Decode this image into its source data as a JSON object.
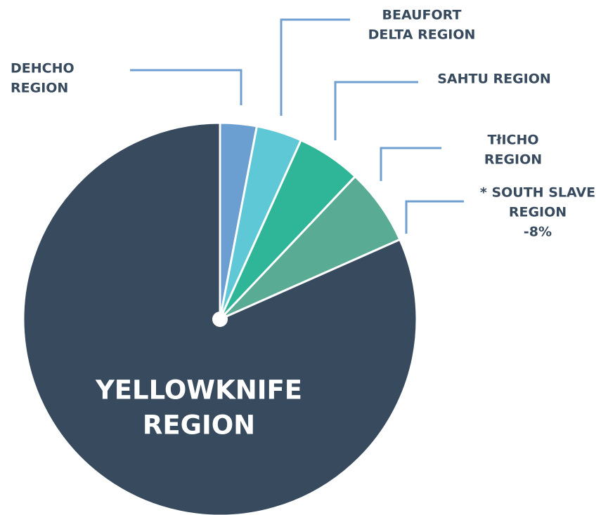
{
  "chart_data": {
    "type": "pie",
    "categories": [
      [
        "DEHCHO",
        "REGION"
      ],
      [
        "BEAUFORT",
        "DELTA REGION"
      ],
      [
        "SAHTU REGION"
      ],
      [
        "TłICHO",
        "REGION"
      ],
      [
        "* SOUTH SLAVE",
        "REGION",
        "-8%"
      ],
      [
        "YELLOWKNIFE",
        "REGION"
      ]
    ],
    "values": [
      3,
      3.75,
      5.3,
      6.3,
      0,
      81.65
    ],
    "colors": [
      "#6b9fd1",
      "#5ec8d6",
      "#2fb597",
      "#5aab94",
      "#5aab94",
      "#374a5e"
    ]
  }
}
